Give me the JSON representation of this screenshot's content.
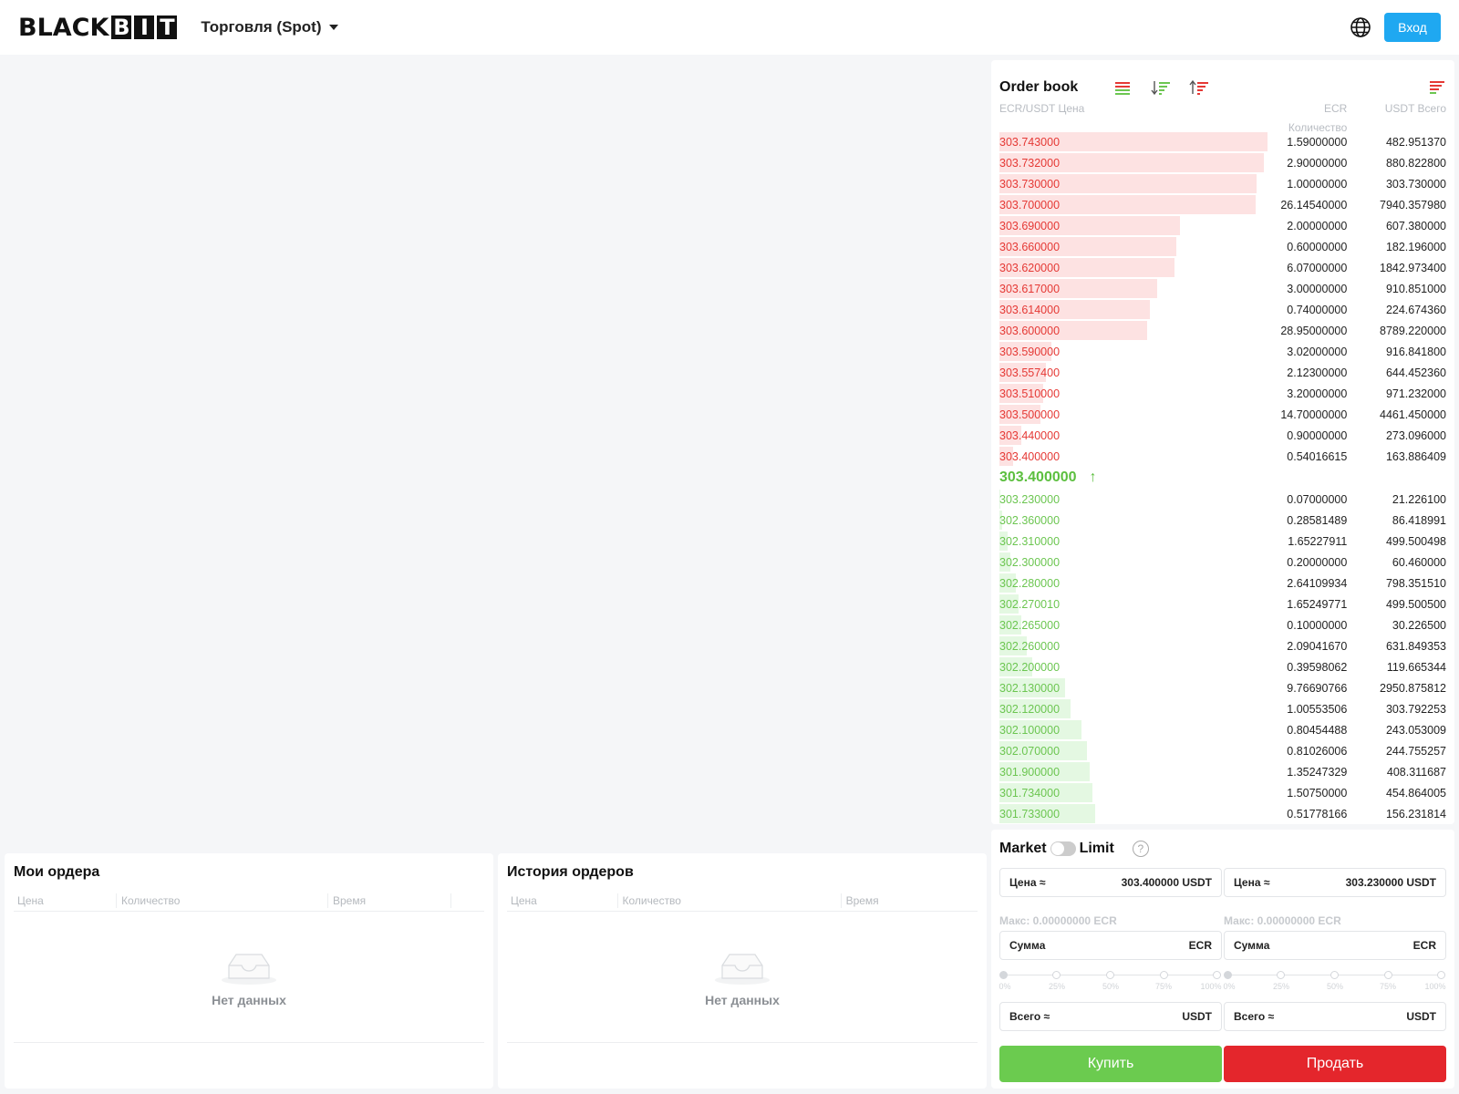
{
  "header": {
    "logo_plain": "BLACK",
    "logo_boxed": [
      "B",
      "I",
      "T"
    ],
    "trade_menu": "Торговля (Spot)",
    "login_label": "Вход"
  },
  "orderbook": {
    "title": "Order book",
    "col_price": "ECR/USDT Цена",
    "col_qty_line1": "ECR",
    "col_qty_line2": "Количество",
    "col_total": "USDT Всего",
    "last_price": "303.400000",
    "last_arrow": "↑",
    "asks": [
      {
        "price": "303.743000",
        "qty": "1.59000000",
        "total": "482.951370",
        "depth": 0.98
      },
      {
        "price": "303.732000",
        "qty": "2.90000000",
        "total": "880.822800",
        "depth": 0.965
      },
      {
        "price": "303.730000",
        "qty": "1.00000000",
        "total": "303.730000",
        "depth": 0.94
      },
      {
        "price": "303.700000",
        "qty": "26.14540000",
        "total": "7940.357980",
        "depth": 0.935
      },
      {
        "price": "303.690000",
        "qty": "2.00000000",
        "total": "607.380000",
        "depth": 0.66
      },
      {
        "price": "303.660000",
        "qty": "0.60000000",
        "total": "182.196000",
        "depth": 0.645
      },
      {
        "price": "303.620000",
        "qty": "6.07000000",
        "total": "1842.973400",
        "depth": 0.64
      },
      {
        "price": "303.617000",
        "qty": "3.00000000",
        "total": "910.851000",
        "depth": 0.575
      },
      {
        "price": "303.614000",
        "qty": "0.74000000",
        "total": "224.674360",
        "depth": 0.55
      },
      {
        "price": "303.600000",
        "qty": "28.95000000",
        "total": "8789.220000",
        "depth": 0.54
      },
      {
        "price": "303.590000",
        "qty": "3.02000000",
        "total": "916.841800",
        "depth": 0.19
      },
      {
        "price": "303.557400",
        "qty": "2.12300000",
        "total": "644.452360",
        "depth": 0.17
      },
      {
        "price": "303.510000",
        "qty": "3.20000000",
        "total": "971.232000",
        "depth": 0.16
      },
      {
        "price": "303.500000",
        "qty": "14.70000000",
        "total": "4461.450000",
        "depth": 0.15
      },
      {
        "price": "303.440000",
        "qty": "0.90000000",
        "total": "273.096000",
        "depth": 0.08
      },
      {
        "price": "303.400000",
        "qty": "0.54016615",
        "total": "163.886409",
        "depth": 0.05
      }
    ],
    "bids": [
      {
        "price": "303.230000",
        "qty": "0.07000000",
        "total": "21.226100",
        "depth": 0.004
      },
      {
        "price": "302.360000",
        "qty": "0.28581489",
        "total": "86.418991",
        "depth": 0.01
      },
      {
        "price": "302.310000",
        "qty": "1.65227911",
        "total": "499.500498",
        "depth": 0.03
      },
      {
        "price": "302.300000",
        "qty": "0.20000000",
        "total": "60.460000",
        "depth": 0.04
      },
      {
        "price": "302.280000",
        "qty": "2.64109934",
        "total": "798.351510",
        "depth": 0.06
      },
      {
        "price": "302.270010",
        "qty": "1.65249771",
        "total": "499.500500",
        "depth": 0.07
      },
      {
        "price": "302.265000",
        "qty": "0.10000000",
        "total": "30.226500",
        "depth": 0.08
      },
      {
        "price": "302.260000",
        "qty": "2.09041670",
        "total": "631.849353",
        "depth": 0.1
      },
      {
        "price": "302.200000",
        "qty": "0.39598062",
        "total": "119.665344",
        "depth": 0.12
      },
      {
        "price": "302.130000",
        "qty": "9.76690766",
        "total": "2950.875812",
        "depth": 0.24
      },
      {
        "price": "302.120000",
        "qty": "1.00553506",
        "total": "303.792253",
        "depth": 0.26
      },
      {
        "price": "302.100000",
        "qty": "0.80454488",
        "total": "243.053009",
        "depth": 0.3
      },
      {
        "price": "302.070000",
        "qty": "0.81026006",
        "total": "244.755257",
        "depth": 0.32
      },
      {
        "price": "301.900000",
        "qty": "1.35247329",
        "total": "408.311687",
        "depth": 0.33
      },
      {
        "price": "301.734000",
        "qty": "1.50750000",
        "total": "454.864005",
        "depth": 0.34
      },
      {
        "price": "301.733000",
        "qty": "0.51778166",
        "total": "156.231814",
        "depth": 0.35
      }
    ]
  },
  "trade": {
    "market_label": "Market",
    "limit_label": "Limit",
    "help": "?",
    "buy": {
      "price_label": "Цена ≈",
      "price_value": "303.400000  USDT",
      "max": "Макс: 0.00000000 ECR",
      "amount_label": "Сумма",
      "amount_unit": "ECR",
      "total_label": "Всего ≈",
      "total_unit": "USDT",
      "button": "Купить"
    },
    "sell": {
      "price_label": "Цена ≈",
      "price_value": "303.230000  USDT",
      "max": "Макс: 0.00000000 ECR",
      "amount_label": "Сумма",
      "amount_unit": "ECR",
      "total_label": "Всего ≈",
      "total_unit": "USDT",
      "button": "Продать"
    },
    "slider_labels": [
      "0%",
      "25%",
      "50%",
      "75%",
      "100%"
    ]
  },
  "my_orders": {
    "title": "Мои ордера",
    "columns": [
      "Цена",
      "Количество",
      "Время"
    ],
    "empty": "Нет данных"
  },
  "order_history": {
    "title": "История ордеров",
    "columns": [
      "Цена",
      "Количество",
      "Время"
    ],
    "empty": "Нет данных"
  },
  "colors": {
    "ask": "#e53935",
    "bid": "#6cc651",
    "buy_button": "#6bcb4f",
    "sell_button": "#e4262c",
    "login_button": "#1fa8f1"
  },
  "icons": [
    "globe-icon",
    "orderbook-both-icon",
    "orderbook-bids-icon",
    "orderbook-asks-icon",
    "orderbook-settings-icon",
    "help-icon",
    "empty-inbox-icon",
    "caret-down-icon",
    "up-arrow-icon"
  ]
}
